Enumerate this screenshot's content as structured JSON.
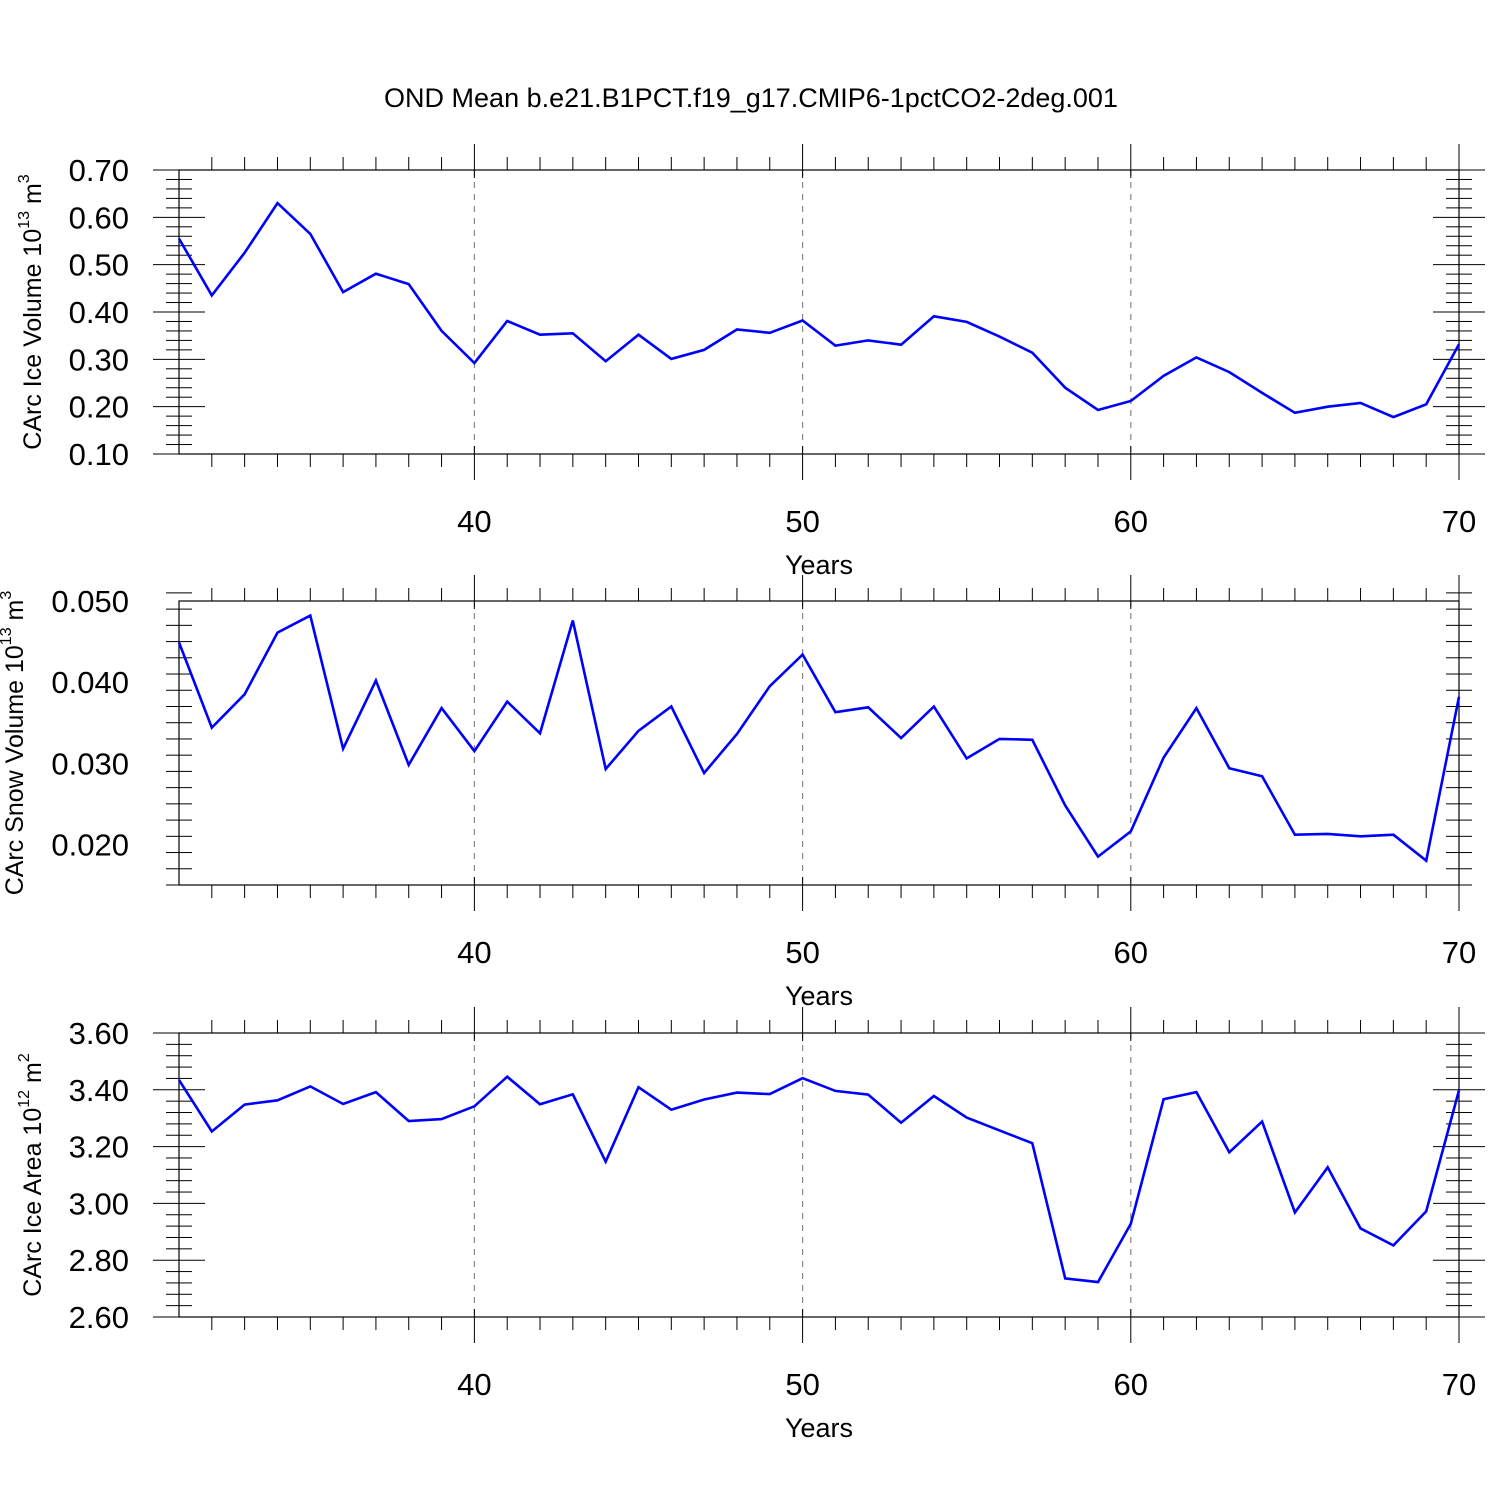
{
  "title": "OND Mean b.e21.B1PCT.f19_g17.CMIP6-1pctCO2-2deg.001",
  "colors": {
    "line": "#0000ff",
    "axis": "#000000",
    "grid": "#888888"
  },
  "chart_data": [
    {
      "type": "line",
      "xlabel": "Years",
      "ylabel_main": "CArc Ice Volume 10",
      "ylabel_exp": "13",
      "ylabel_unit": " m",
      "ylabel_unit_exp": "3",
      "xlim": [
        31,
        70
      ],
      "ylim": [
        0.1,
        0.7
      ],
      "xticks": [
        40,
        50,
        60,
        70
      ],
      "xtick_labels": [
        "40",
        "50",
        "60",
        "70"
      ],
      "yticks": [
        0.1,
        0.2,
        0.3,
        0.4,
        0.5,
        0.6,
        0.7
      ],
      "ytick_labels": [
        "0.10",
        "0.20",
        "0.30",
        "0.40",
        "0.50",
        "0.60",
        "0.70"
      ],
      "ytick_minor_step": 0.02,
      "grid_x": [
        40,
        50,
        60
      ],
      "x": [
        31,
        32,
        33,
        34,
        35,
        36,
        37,
        38,
        39,
        40,
        41,
        42,
        43,
        44,
        45,
        46,
        47,
        48,
        49,
        50,
        51,
        52,
        53,
        54,
        55,
        56,
        57,
        58,
        59,
        60,
        61,
        62,
        63,
        64,
        65,
        66,
        67,
        68,
        69,
        70
      ],
      "y": [
        0.555,
        0.435,
        0.525,
        0.63,
        0.565,
        0.442,
        0.481,
        0.459,
        0.36,
        0.292,
        0.381,
        0.352,
        0.355,
        0.296,
        0.352,
        0.301,
        0.32,
        0.363,
        0.356,
        0.382,
        0.329,
        0.34,
        0.331,
        0.391,
        0.379,
        0.348,
        0.314,
        0.24,
        0.193,
        0.212,
        0.265,
        0.304,
        0.273,
        0.229,
        0.187,
        0.2,
        0.208,
        0.178,
        0.205,
        0.332
      ]
    },
    {
      "type": "line",
      "xlabel": "Years",
      "ylabel_main": "CArc Snow Volume 10",
      "ylabel_exp": "13",
      "ylabel_unit": " m",
      "ylabel_unit_exp": "3",
      "xlim": [
        31,
        70
      ],
      "ylim": [
        0.015,
        0.05
      ],
      "xticks": [
        40,
        50,
        60,
        70
      ],
      "xtick_labels": [
        "40",
        "50",
        "60",
        "70"
      ],
      "yticks": [
        0.02,
        0.03,
        0.04,
        0.05
      ],
      "ytick_labels": [
        "0.020",
        "0.030",
        "0.040",
        "0.050"
      ],
      "ytick_minor_step": 0.002,
      "grid_x": [
        40,
        50,
        60
      ],
      "x": [
        31,
        32,
        33,
        34,
        35,
        36,
        37,
        38,
        39,
        40,
        41,
        42,
        43,
        44,
        45,
        46,
        47,
        48,
        49,
        50,
        51,
        52,
        53,
        54,
        55,
        56,
        57,
        58,
        59,
        60,
        61,
        62,
        63,
        64,
        65,
        66,
        67,
        68,
        69,
        70
      ],
      "y": [
        0.0449,
        0.0344,
        0.0385,
        0.0461,
        0.0482,
        0.0318,
        0.0402,
        0.0298,
        0.0368,
        0.0315,
        0.0376,
        0.0337,
        0.0476,
        0.0293,
        0.034,
        0.037,
        0.0288,
        0.0336,
        0.0395,
        0.0434,
        0.0363,
        0.0369,
        0.0331,
        0.037,
        0.0306,
        0.033,
        0.0329,
        0.0248,
        0.0185,
        0.0216,
        0.0307,
        0.0368,
        0.0294,
        0.0284,
        0.0212,
        0.0213,
        0.021,
        0.0212,
        0.018,
        0.0382
      ]
    },
    {
      "type": "line",
      "xlabel": "Years",
      "ylabel_main": "CArc Ice Area 10",
      "ylabel_exp": "12",
      "ylabel_unit": " m",
      "ylabel_unit_exp": "2",
      "xlim": [
        31,
        70
      ],
      "ylim": [
        2.6,
        3.6
      ],
      "xticks": [
        40,
        50,
        60,
        70
      ],
      "xtick_labels": [
        "40",
        "50",
        "60",
        "70"
      ],
      "yticks": [
        2.6,
        2.8,
        3.0,
        3.2,
        3.4,
        3.6
      ],
      "ytick_labels": [
        "2.60",
        "2.80",
        "3.00",
        "3.20",
        "3.40",
        "3.60"
      ],
      "ytick_minor_step": 0.04,
      "grid_x": [
        40,
        50,
        60
      ],
      "x": [
        31,
        32,
        33,
        34,
        35,
        36,
        37,
        38,
        39,
        40,
        41,
        42,
        43,
        44,
        45,
        46,
        47,
        48,
        49,
        50,
        51,
        52,
        53,
        54,
        55,
        56,
        57,
        58,
        59,
        60,
        61,
        62,
        63,
        64,
        65,
        66,
        67,
        68,
        69,
        70
      ],
      "y": [
        3.435,
        3.253,
        3.348,
        3.363,
        3.412,
        3.35,
        3.392,
        3.29,
        3.297,
        3.342,
        3.446,
        3.349,
        3.384,
        3.147,
        3.409,
        3.33,
        3.366,
        3.39,
        3.385,
        3.441,
        3.396,
        3.383,
        3.284,
        3.378,
        3.302,
        3.257,
        3.212,
        2.736,
        2.723,
        2.928,
        3.367,
        3.392,
        3.18,
        3.288,
        2.968,
        3.127,
        2.912,
        2.852,
        2.972,
        3.398
      ]
    }
  ]
}
